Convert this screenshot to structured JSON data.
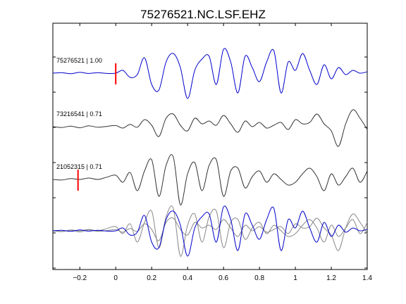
{
  "chart_data": {
    "type": "line",
    "title": "75276521.NC.LSF.EHZ",
    "xlabel": "",
    "ylabel": "",
    "xlim": [
      -0.35,
      1.4
    ],
    "xticks": [
      -0.2,
      0,
      0.2,
      0.4,
      0.6,
      0.8,
      1,
      1.2,
      1.4
    ],
    "xtick_labels": [
      "−0.2",
      "0",
      "0.2",
      "0.4",
      "0.6",
      "0.8",
      "1",
      "1.2",
      "1.4"
    ],
    "grid": false,
    "legend": "none",
    "series": [
      {
        "label": "75276521 | 1.00",
        "color": "#0000cc",
        "pick_time": 0.0,
        "pick_color": "#ff0000",
        "x": [
          -0.35,
          -0.3,
          -0.25,
          -0.2,
          -0.15,
          -0.1,
          -0.05,
          0.0,
          0.04,
          0.08,
          0.12,
          0.16,
          0.2,
          0.24,
          0.28,
          0.32,
          0.36,
          0.4,
          0.44,
          0.48,
          0.52,
          0.56,
          0.6,
          0.64,
          0.68,
          0.72,
          0.76,
          0.8,
          0.84,
          0.88,
          0.92,
          0.96,
          1.0,
          1.04,
          1.08,
          1.12,
          1.16,
          1.2,
          1.24,
          1.28,
          1.32,
          1.36,
          1.4
        ],
        "y": [
          0.0,
          0.02,
          -0.02,
          0.03,
          -0.01,
          0.02,
          -0.01,
          0.0,
          0.1,
          -0.15,
          -0.05,
          0.55,
          -0.4,
          -0.6,
          0.4,
          0.7,
          0.2,
          -0.9,
          0.1,
          0.5,
          0.6,
          -0.4,
          0.85,
          0.4,
          -0.7,
          0.6,
          0.2,
          -0.3,
          0.4,
          0.8,
          -0.7,
          0.4,
          0.1,
          0.7,
          0.1,
          -0.4,
          0.3,
          -0.2,
          0.2,
          -0.05,
          0.1,
          0.0,
          0.05
        ]
      },
      {
        "label": "73216541 | 0.71",
        "color": "#333333",
        "x": [
          -0.35,
          -0.3,
          -0.25,
          -0.2,
          -0.15,
          -0.1,
          -0.05,
          0.0,
          0.04,
          0.08,
          0.12,
          0.16,
          0.2,
          0.24,
          0.28,
          0.32,
          0.36,
          0.4,
          0.44,
          0.48,
          0.52,
          0.56,
          0.6,
          0.64,
          0.68,
          0.72,
          0.76,
          0.8,
          0.84,
          0.88,
          0.92,
          0.96,
          1.0,
          1.04,
          1.08,
          1.12,
          1.16,
          1.2,
          1.24,
          1.28,
          1.32,
          1.36,
          1.4
        ],
        "y": [
          0.0,
          -0.03,
          0.02,
          -0.04,
          0.03,
          -0.02,
          0.01,
          0.04,
          -0.05,
          0.08,
          -0.02,
          0.25,
          0.05,
          -0.35,
          0.3,
          0.45,
          0.05,
          -0.15,
          0.3,
          0.1,
          0.2,
          0.05,
          0.4,
          0.1,
          -0.2,
          0.2,
          0.0,
          0.15,
          -0.05,
          0.05,
          0.15,
          -0.1,
          0.25,
          0.1,
          0.15,
          0.45,
          0.1,
          -0.15,
          -0.7,
          0.1,
          0.6,
          0.3,
          -0.1
        ]
      },
      {
        "label": "21052315 | 0.71",
        "color": "#333333",
        "pick_time": -0.21,
        "pick_color": "#ff0000",
        "x": [
          -0.35,
          -0.3,
          -0.25,
          -0.2,
          -0.15,
          -0.1,
          -0.05,
          0.0,
          0.04,
          0.08,
          0.12,
          0.16,
          0.2,
          0.24,
          0.28,
          0.32,
          0.36,
          0.4,
          0.44,
          0.48,
          0.52,
          0.56,
          0.6,
          0.64,
          0.68,
          0.72,
          0.76,
          0.8,
          0.84,
          0.88,
          0.92,
          0.96,
          1.0,
          1.04,
          1.08,
          1.12,
          1.16,
          1.2,
          1.24,
          1.28,
          1.32,
          1.36,
          1.4
        ],
        "y": [
          0.0,
          -0.02,
          0.03,
          0.0,
          0.05,
          0.0,
          0.08,
          0.15,
          -0.1,
          0.25,
          -0.4,
          0.3,
          0.7,
          -0.6,
          0.5,
          0.8,
          -0.9,
          0.2,
          0.6,
          -0.4,
          0.5,
          0.7,
          -0.6,
          0.3,
          0.4,
          -0.3,
          0.1,
          0.3,
          -0.1,
          0.2,
          0.0,
          -0.2,
          -0.1,
          0.2,
          0.4,
          0.1,
          -0.4,
          0.2,
          -0.2,
          0.1,
          0.4,
          -0.1,
          0.3
        ]
      }
    ],
    "overlay": {
      "description_hidden": true,
      "series_colors": [
        "#0000cc",
        "#888888",
        "#888888"
      ]
    }
  }
}
